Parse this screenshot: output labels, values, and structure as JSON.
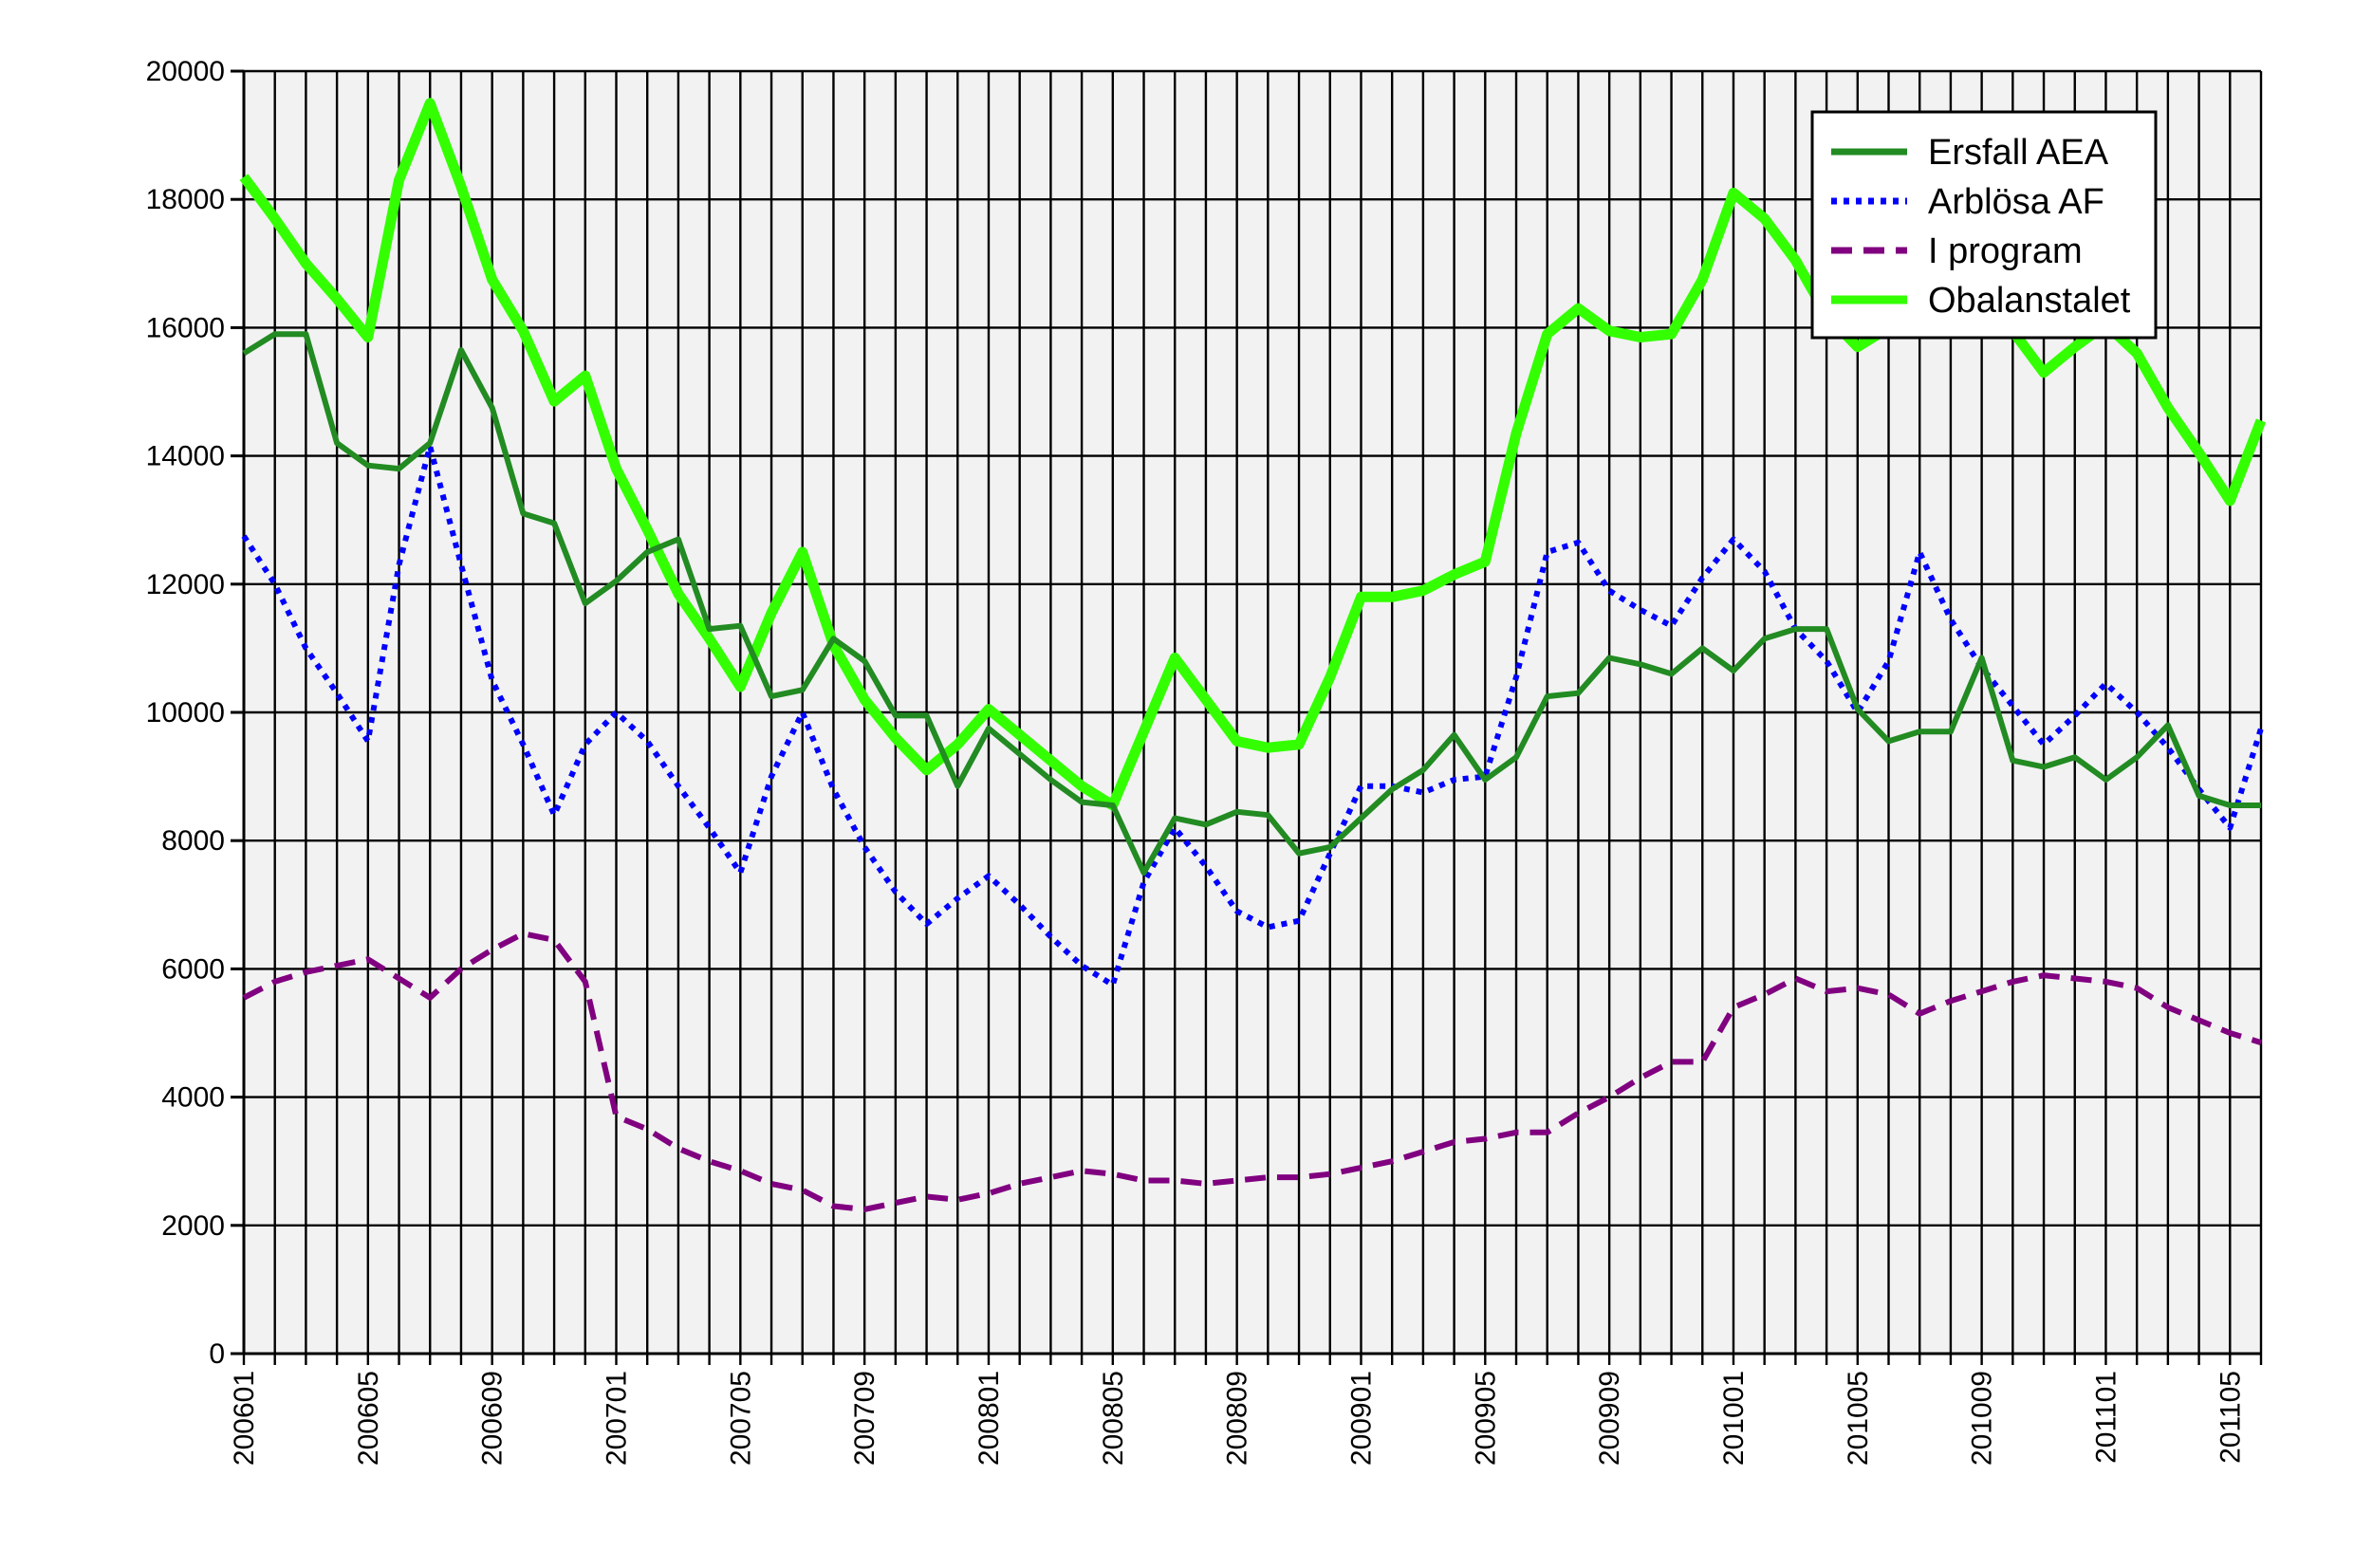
{
  "chart_data": {
    "type": "line",
    "title": "",
    "xlabel": "",
    "ylabel": "",
    "ylim": [
      0,
      20000
    ],
    "yticks": [
      0,
      2000,
      4000,
      6000,
      8000,
      10000,
      12000,
      14000,
      16000,
      18000,
      20000
    ],
    "grid": true,
    "legend_position": "top-right",
    "x": [
      "200601",
      "200602",
      "200603",
      "200604",
      "200605",
      "200606",
      "200607",
      "200608",
      "200609",
      "200610",
      "200611",
      "200612",
      "200701",
      "200702",
      "200703",
      "200704",
      "200705",
      "200706",
      "200707",
      "200708",
      "200709",
      "200710",
      "200711",
      "200712",
      "200801",
      "200802",
      "200803",
      "200804",
      "200805",
      "200806",
      "200807",
      "200808",
      "200809",
      "200810",
      "200811",
      "200812",
      "200901",
      "200902",
      "200903",
      "200904",
      "200905",
      "200906",
      "200907",
      "200908",
      "200909",
      "200910",
      "200911",
      "200912",
      "201001",
      "201002",
      "201003",
      "201004",
      "201005",
      "201006",
      "201007",
      "201008",
      "201009",
      "201010",
      "201011",
      "201012",
      "201101",
      "201102",
      "201103",
      "201104",
      "201105",
      "201106"
    ],
    "x_tick_labels": [
      "200601",
      "200605",
      "200609",
      "200701",
      "200705",
      "200709",
      "200801",
      "200805",
      "200809",
      "200901",
      "200905",
      "200909",
      "201001",
      "201005",
      "201009",
      "201101",
      "201105"
    ],
    "series": [
      {
        "name": "Ersfall AEA",
        "color": "#228b22",
        "style": "solid",
        "values": [
          15600,
          15900,
          15900,
          14200,
          13850,
          13800,
          14200,
          15650,
          14750,
          13100,
          12950,
          11700,
          12050,
          12500,
          12700,
          11300,
          11350,
          10250,
          10350,
          11150,
          10800,
          9950,
          9950,
          8850,
          9750,
          9350,
          8950,
          8600,
          8550,
          7500,
          8350,
          8250,
          8450,
          8400,
          7800,
          7900,
          8350,
          8800,
          9100,
          9650,
          8950,
          9300,
          10250,
          10300,
          10850,
          10750,
          10600,
          11000,
          10650,
          11150,
          11300,
          11300,
          10050,
          9550,
          9700,
          9700,
          10850,
          9250,
          9150,
          9300,
          8950,
          9300,
          9800,
          8700,
          8550,
          8550
        ]
      },
      {
        "name": "Arblösa AF",
        "color": "#0000ff",
        "style": "dotted",
        "values": [
          12750,
          12000,
          11000,
          10300,
          9550,
          12300,
          14150,
          12300,
          10500,
          9500,
          8400,
          9500,
          10000,
          9550,
          8850,
          8200,
          7500,
          9000,
          10000,
          8800,
          7900,
          7200,
          6700,
          7100,
          7450,
          7000,
          6500,
          6050,
          5750,
          7350,
          8200,
          7600,
          6900,
          6650,
          6750,
          7800,
          8850,
          8850,
          8750,
          8950,
          9000,
          10550,
          12500,
          12650,
          11900,
          11600,
          11350,
          12100,
          12700,
          12200,
          11300,
          10800,
          10000,
          10800,
          12500,
          11450,
          10700,
          10100,
          9500,
          9950,
          10450,
          10000,
          9450,
          8800,
          8200,
          9750
        ]
      },
      {
        "name": "I program",
        "color": "#800080",
        "style": "dashed",
        "values": [
          5550,
          5800,
          5950,
          6050,
          6150,
          5850,
          5550,
          6000,
          6300,
          6550,
          6450,
          5800,
          3700,
          3500,
          3200,
          3000,
          2850,
          2650,
          2550,
          2300,
          2250,
          2350,
          2450,
          2400,
          2500,
          2650,
          2750,
          2850,
          2800,
          2700,
          2700,
          2650,
          2700,
          2750,
          2750,
          2800,
          2900,
          3000,
          3150,
          3300,
          3350,
          3450,
          3450,
          3750,
          4000,
          4300,
          4550,
          4550,
          5400,
          5600,
          5850,
          5650,
          5700,
          5600,
          5300,
          5500,
          5650,
          5800,
          5900,
          5850,
          5800,
          5700,
          5400,
          5200,
          5000,
          4850
        ]
      },
      {
        "name": "Obalanstalet",
        "color": "#33ff00",
        "style": "solid-thick",
        "values": [
          18350,
          17700,
          17000,
          16450,
          15850,
          18300,
          19500,
          18200,
          16750,
          15950,
          14850,
          15250,
          13800,
          12850,
          11850,
          11150,
          10400,
          11550,
          12500,
          11050,
          10200,
          9600,
          9100,
          9500,
          10050,
          9650,
          9250,
          8850,
          8550,
          9700,
          10850,
          10200,
          9550,
          9450,
          9500,
          10550,
          11800,
          11800,
          11900,
          12150,
          12350,
          14350,
          15900,
          16300,
          15950,
          15850,
          15900,
          16750,
          18100,
          17700,
          17050,
          16200,
          15700,
          16000,
          16200,
          16300,
          16300,
          15950,
          15300,
          15700,
          16050,
          15600,
          14750,
          14050,
          13300,
          14550
        ]
      }
    ]
  }
}
